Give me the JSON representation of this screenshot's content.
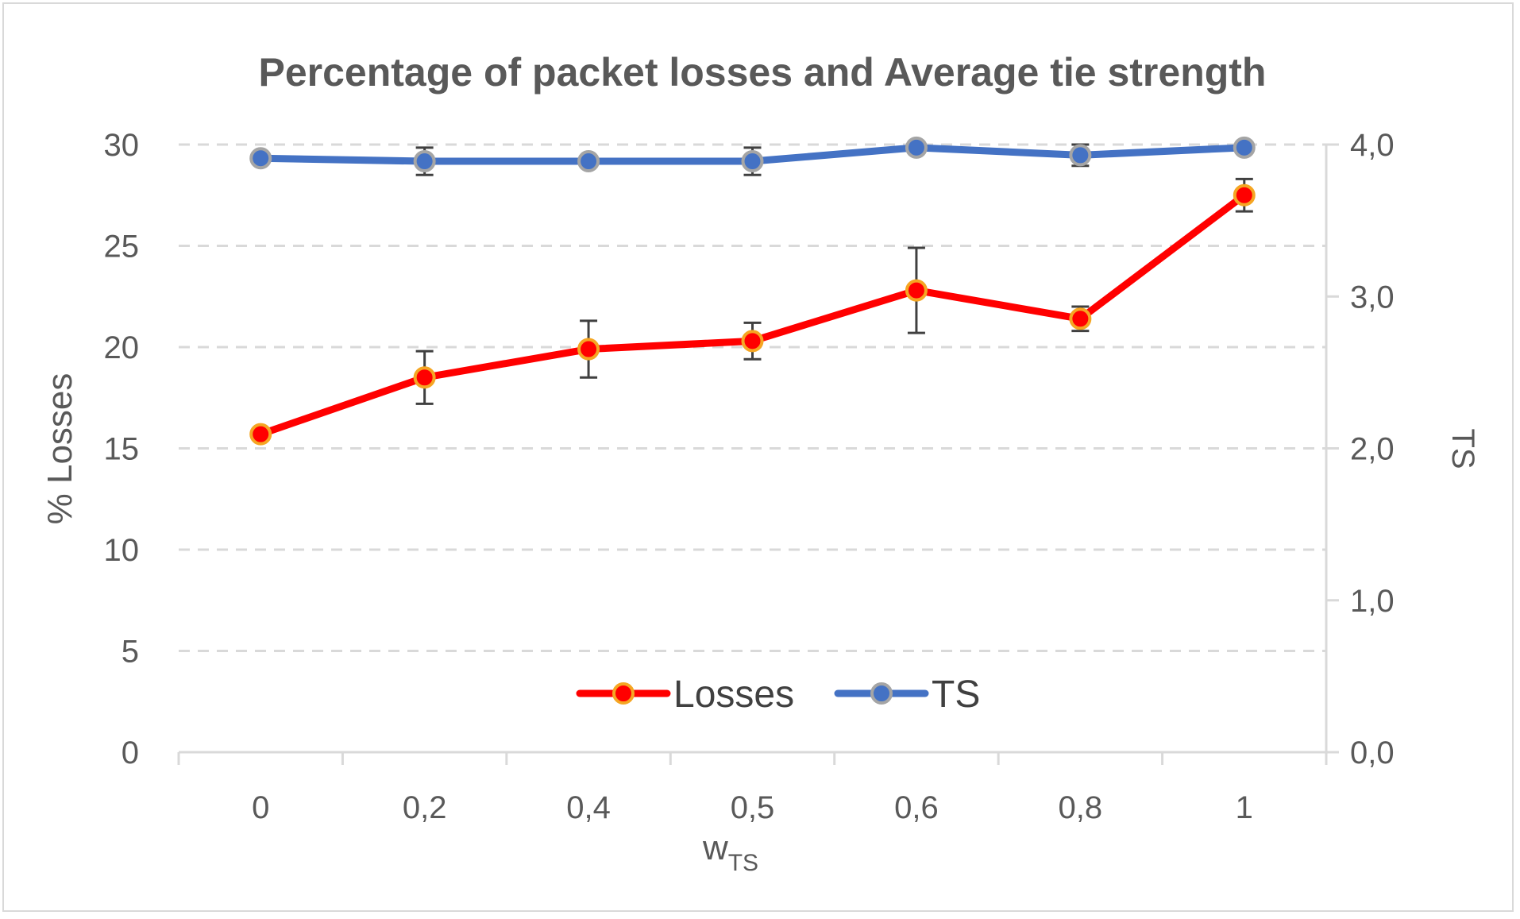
{
  "chart_data": {
    "type": "line",
    "title": "Percentage of packet losses and Average tie strength",
    "categories": [
      "0",
      "0,2",
      "0,4",
      "0,5",
      "0,6",
      "0,8",
      "1"
    ],
    "xlabel_main": "w",
    "xlabel_sub": "TS",
    "ylabel_left": "% Losses",
    "ylabel_right": "TS",
    "y_left": {
      "min": 0,
      "max": 30,
      "ticks": [
        "0",
        "5",
        "10",
        "15",
        "20",
        "25",
        "30"
      ]
    },
    "y_right": {
      "min": 0,
      "max": 4,
      "ticks": [
        "0,0",
        "1,0",
        "2,0",
        "3,0",
        "4,0"
      ]
    },
    "grid": "horizontal dashed",
    "legend_position": "bottom-center",
    "series": [
      {
        "name": "Losses",
        "axis": "left",
        "color": "#ff0000",
        "marker_fill": "#ff0000",
        "marker_edge": "#f5a623",
        "values": [
          15.7,
          18.5,
          19.9,
          20.3,
          22.8,
          21.4,
          27.5
        ],
        "error": [
          0,
          1.3,
          1.4,
          0.9,
          2.1,
          0.6,
          0.8
        ]
      },
      {
        "name": "TS",
        "axis": "right",
        "color": "#4472c4",
        "marker_fill": "#4472c4",
        "marker_edge": "#a5a5a5",
        "values": [
          3.91,
          3.89,
          3.89,
          3.89,
          3.98,
          3.93,
          3.98
        ],
        "error": [
          0,
          0.09,
          0,
          0.09,
          0,
          0.07,
          0
        ]
      }
    ]
  }
}
